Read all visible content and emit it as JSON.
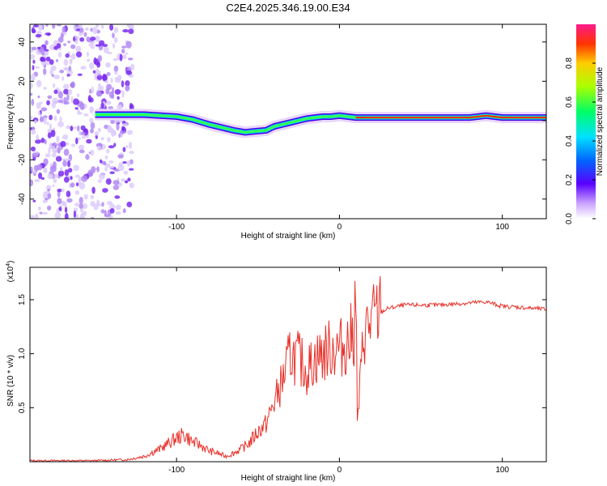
{
  "title": "C2E4.2025.346.19.00.E34",
  "chart_data": [
    {
      "type": "heatmap",
      "panel": "top",
      "xlabel": "Height of straight line (km)",
      "ylabel": "Frequency (Hz)",
      "xlim": [
        -190,
        127
      ],
      "ylim": [
        -50,
        49
      ],
      "xticks": [
        -100,
        0,
        100
      ],
      "yticks": [
        -40,
        -20,
        0,
        20,
        40
      ],
      "colorbar": {
        "label": "Normalized spectral amplitude",
        "range": [
          0,
          1
        ],
        "ticks": [
          0.0,
          0.2,
          0.4,
          0.6,
          0.8
        ]
      },
      "signal_trace": {
        "x": [
          -150,
          -135,
          -120,
          -110,
          -100,
          -90,
          -80,
          -70,
          -65,
          -58,
          -52,
          -45,
          -40,
          -35,
          -30,
          -25,
          -20,
          -15,
          -10,
          -5,
          0,
          5,
          10,
          20,
          40,
          60,
          80,
          90,
          100,
          110,
          127
        ],
        "y": [
          3,
          3,
          3,
          2.5,
          2,
          0.5,
          -2,
          -4,
          -5,
          -6,
          -5.5,
          -5,
          -3,
          -2,
          -1,
          0,
          1,
          1.5,
          2,
          2,
          2.5,
          2,
          1.5,
          1.5,
          1.5,
          1.5,
          1.5,
          2.5,
          1.5,
          1.5,
          1.5
        ]
      },
      "noise_region": [
        -190,
        -127
      ]
    },
    {
      "type": "line",
      "panel": "bottom",
      "xlabel": "Height of straight line (km)",
      "ylabel": "SNR (10 * v/v)",
      "scale_label": "(x10",
      "scale_exp": "4",
      "scale_close": ")",
      "xlim": [
        -190,
        127
      ],
      "ylim": [
        0,
        1.8
      ],
      "xticks": [
        -100,
        0,
        100
      ],
      "yticks": [
        0.5,
        1.0,
        1.5
      ],
      "series": [
        {
          "name": "SNR",
          "color": "#e8312a",
          "x": [
            -190,
            -150,
            -130,
            -120,
            -110,
            -100,
            -95,
            -90,
            -85,
            -80,
            -75,
            -70,
            -65,
            -60,
            -55,
            -50,
            -45,
            -40,
            -35,
            -30,
            -25,
            -20,
            -15,
            -10,
            -5,
            0,
            5,
            9,
            10,
            11,
            15,
            20,
            25,
            30,
            40,
            60,
            80,
            90,
            100,
            110,
            127
          ],
          "y": [
            0.01,
            0.01,
            0.02,
            0.05,
            0.12,
            0.22,
            0.25,
            0.18,
            0.15,
            0.1,
            0.08,
            0.05,
            0.08,
            0.12,
            0.18,
            0.28,
            0.35,
            0.55,
            0.75,
            1.0,
            0.95,
            0.85,
            0.95,
            1.0,
            1.05,
            1.05,
            1.1,
            1.2,
            1.75,
            0.35,
            1.2,
            1.3,
            1.38,
            1.42,
            1.45,
            1.45,
            1.47,
            1.48,
            1.44,
            1.43,
            1.41
          ]
        }
      ]
    }
  ]
}
